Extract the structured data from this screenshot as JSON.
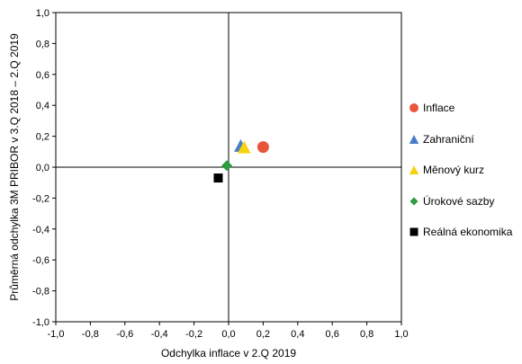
{
  "chart_data": {
    "type": "scatter",
    "xlabel": "Odchylka inflace v 2.Q 2019",
    "ylabel": "Průměrná odchylka 3M PRIBOR v 3.Q 2018 – 2.Q 2019",
    "xlim": [
      -1.0,
      1.0
    ],
    "ylim": [
      -1.0,
      1.0
    ],
    "x_ticks": [
      "-1,0",
      "-0,8",
      "-0,6",
      "-0,4",
      "-0,2",
      "0,0",
      "0,2",
      "0,4",
      "0,6",
      "0,8",
      "1,0"
    ],
    "y_ticks": [
      "1,0",
      "0,8",
      "0,6",
      "0,4",
      "0,2",
      "0,0",
      "-0,2",
      "-0,4",
      "-0,6",
      "-0,8",
      "-1,0"
    ],
    "legend_position": "right",
    "grid": false,
    "series": [
      {
        "name": "Inflace",
        "marker": "circle",
        "color": "#e8553b",
        "x": 0.2,
        "y": 0.13
      },
      {
        "name": "Zahraniční",
        "marker": "triangle",
        "color": "#4a7dc8",
        "x": 0.07,
        "y": 0.14
      },
      {
        "name": "Měnový kurz",
        "marker": "triangle",
        "color": "#f5d40f",
        "x": 0.09,
        "y": 0.13
      },
      {
        "name": "Úrokové sazby",
        "marker": "diamond",
        "color": "#2e9b3e",
        "x": -0.01,
        "y": 0.01
      },
      {
        "name": "Reálná ekonomika",
        "marker": "square",
        "color": "#000000",
        "x": -0.06,
        "y": -0.07
      }
    ]
  }
}
